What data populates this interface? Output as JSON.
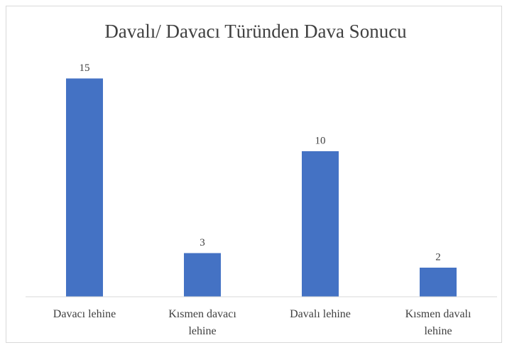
{
  "chart_data": {
    "type": "bar",
    "title": "Davalı/ Davacı Türünden Dava Sonucu",
    "categories": [
      "Davacı lehine",
      "Kısmen davacı lehine",
      "Davalı lehine",
      "Kısmen davalı lehine"
    ],
    "values": [
      15,
      3,
      10,
      2
    ],
    "color": "#4472c4",
    "ylim": [
      0,
      16
    ]
  }
}
